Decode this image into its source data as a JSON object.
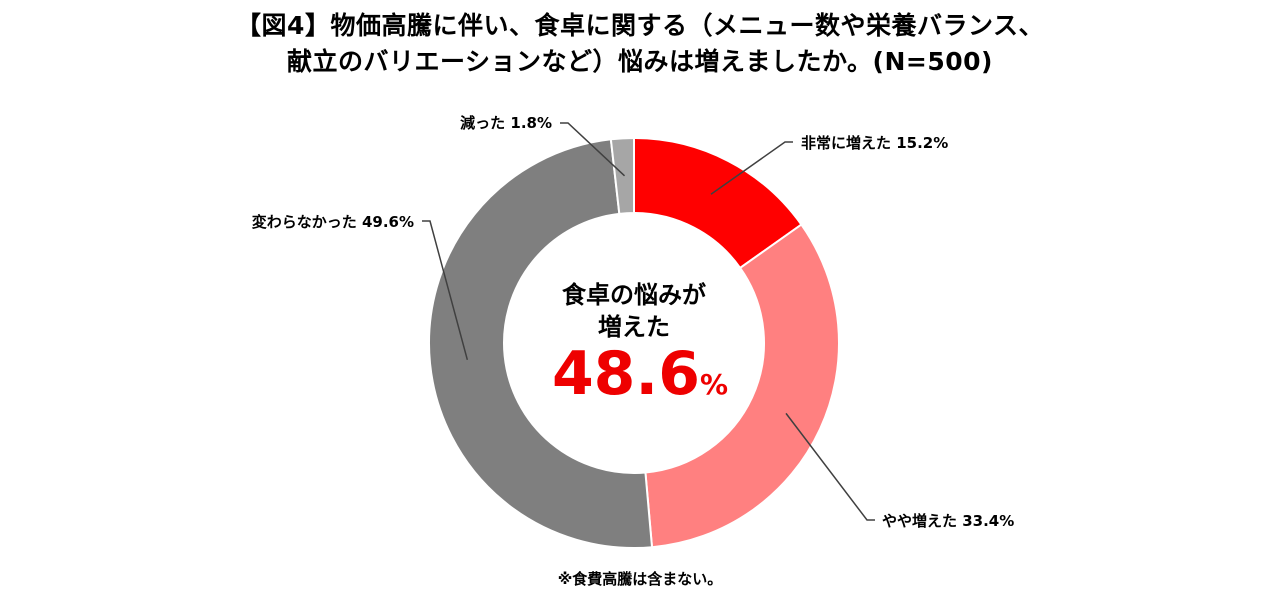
{
  "title": {
    "line1": "【図4】物価高騰に伴い、食卓に関する（メニュー数や栄養バランス、",
    "line2": "献立のバリエーションなど）悩みは増えましたか。(N=500)"
  },
  "center": {
    "line1": "食卓の悩みが",
    "line2": "増えた",
    "value": "48.6",
    "unit": "%"
  },
  "note": "※食費高騰は含まない。",
  "colors": {
    "very_increased": "#ff0000",
    "somewhat_increased": "#ff8080",
    "unchanged": "#7f7f7f",
    "decreased": "#a6a6a6"
  },
  "chart_data": {
    "type": "pie",
    "donut": true,
    "start": "top",
    "direction": "clockwise",
    "slices": [
      {
        "label": "非常に増えた",
        "value": 15.2,
        "display": "非常に増えた 15.2%",
        "color": "#ff0000"
      },
      {
        "label": "やや増えた",
        "value": 33.4,
        "display": "やや増えた 33.4%",
        "color": "#ff8080"
      },
      {
        "label": "変わらなかった",
        "value": 49.6,
        "display": "変わらなかった 49.6%",
        "color": "#7f7f7f"
      },
      {
        "label": "減った",
        "value": 1.8,
        "display": "減った 1.8%",
        "color": "#a6a6a6"
      }
    ]
  }
}
